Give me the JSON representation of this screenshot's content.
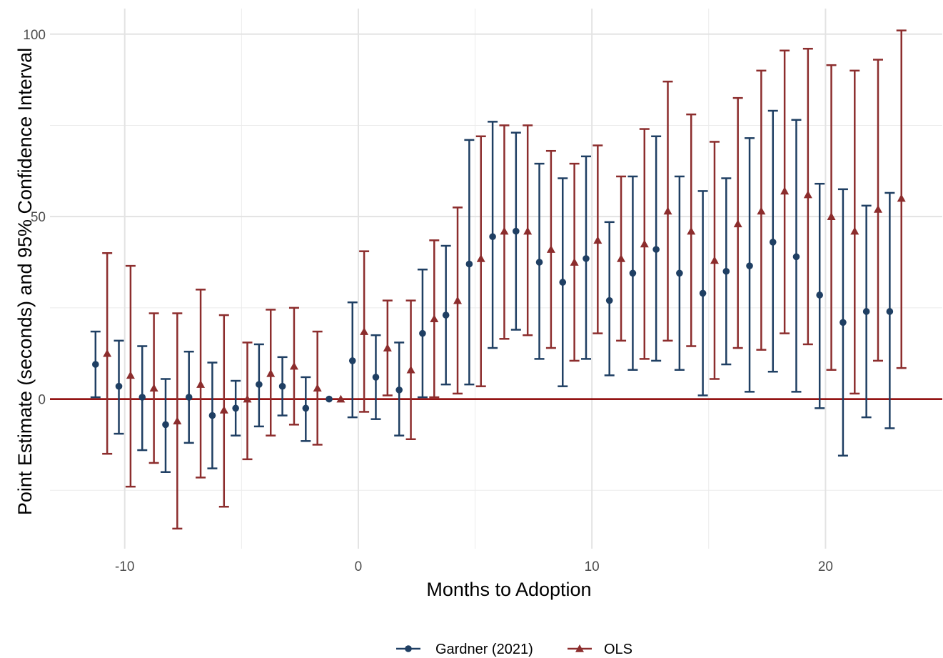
{
  "chart_data": {
    "type": "scatter",
    "subtype": "point-with-error-bars",
    "title": "",
    "xlabel": "Months to Adoption",
    "ylabel": "Point Estimate (seconds) and 95% Confidence Interval",
    "xlim": [
      -13.2,
      25
    ],
    "ylim": [
      -41,
      107
    ],
    "x_ticks": [
      -10,
      0,
      10,
      20
    ],
    "y_ticks": [
      0,
      50,
      100
    ],
    "grid": true,
    "reference_line": {
      "y": 0,
      "color": "#8b0000"
    },
    "legend_position": "bottom",
    "series": [
      {
        "name": "Gardner (2021)",
        "marker": "circle",
        "color": "#1f3f63",
        "offset": -0.25,
        "x": [
          -11,
          -10,
          -9,
          -8,
          -7,
          -6,
          -5,
          -4,
          -3,
          -2,
          -1,
          0,
          1,
          2,
          3,
          4,
          5,
          6,
          7,
          8,
          9,
          10,
          11,
          12,
          13,
          14,
          15,
          16,
          17,
          18,
          19,
          20,
          21,
          22,
          23
        ],
        "estimate": [
          9.5,
          3.5,
          0.5,
          -7,
          0.5,
          -4.5,
          -2.5,
          4,
          3.5,
          -2.5,
          0,
          10.5,
          6,
          2.5,
          18,
          23,
          37,
          44.5,
          46,
          37.5,
          32,
          38.5,
          27,
          34.5,
          41,
          34.5,
          29,
          35,
          36.5,
          43,
          39,
          28.5,
          21,
          24,
          24
        ],
        "lower": [
          0.5,
          -9.5,
          -14,
          -20,
          -12,
          -19,
          -10,
          -7.5,
          -4.5,
          -11.5,
          0,
          -5,
          -5.5,
          -10,
          0.5,
          4,
          4,
          14,
          19,
          11,
          3.5,
          11,
          6.5,
          8,
          10.5,
          8,
          1,
          9.5,
          2,
          7.5,
          2,
          -2.5,
          -15.5,
          -5,
          -8
        ],
        "upper": [
          18.5,
          16,
          14.5,
          5.5,
          13,
          10,
          5,
          15,
          11.5,
          6,
          0,
          26.5,
          17.5,
          15.5,
          35.5,
          42,
          71,
          76,
          73,
          64.5,
          60.5,
          66.5,
          48.5,
          61,
          72,
          61,
          57,
          60.5,
          71.5,
          79,
          76.5,
          59,
          57.5,
          53,
          56.5
        ]
      },
      {
        "name": "OLS",
        "marker": "triangle",
        "color": "#8c2d2d",
        "offset": 0.25,
        "x": [
          -11,
          -10,
          -9,
          -8,
          -7,
          -6,
          -5,
          -4,
          -3,
          -2,
          -1,
          0,
          1,
          2,
          3,
          4,
          5,
          6,
          7,
          8,
          9,
          10,
          11,
          12,
          13,
          14,
          15,
          16,
          17,
          18,
          19,
          20,
          21,
          22,
          23
        ],
        "estimate": [
          12.5,
          6.5,
          3,
          -6,
          4,
          -3,
          0,
          7,
          9,
          3,
          0,
          18.5,
          14,
          8,
          22,
          27,
          38.5,
          46,
          46,
          41,
          37.5,
          43.5,
          38.5,
          42.5,
          51.5,
          46,
          38,
          48,
          51.5,
          57,
          56,
          50,
          46,
          52,
          55
        ],
        "lower": [
          -15,
          -24,
          -17.5,
          -35.5,
          -21.5,
          -29.5,
          -16.5,
          -10,
          -7,
          -12.5,
          0,
          -3.5,
          1,
          -11,
          0.5,
          1.5,
          3.5,
          16.5,
          17.5,
          14,
          10.5,
          18,
          16,
          11,
          16,
          14.5,
          5.5,
          14,
          13.5,
          18,
          15,
          8,
          1.5,
          10.5,
          8.5
        ],
        "upper": [
          40,
          36.5,
          23.5,
          23.5,
          30,
          23,
          15.5,
          24.5,
          25,
          18.5,
          0,
          40.5,
          27,
          27,
          43.5,
          52.5,
          72,
          75,
          75,
          68,
          64.5,
          69.5,
          61,
          74,
          87,
          78,
          70.5,
          82.5,
          90,
          95.5,
          96,
          91.5,
          90,
          93,
          101
        ]
      }
    ]
  }
}
